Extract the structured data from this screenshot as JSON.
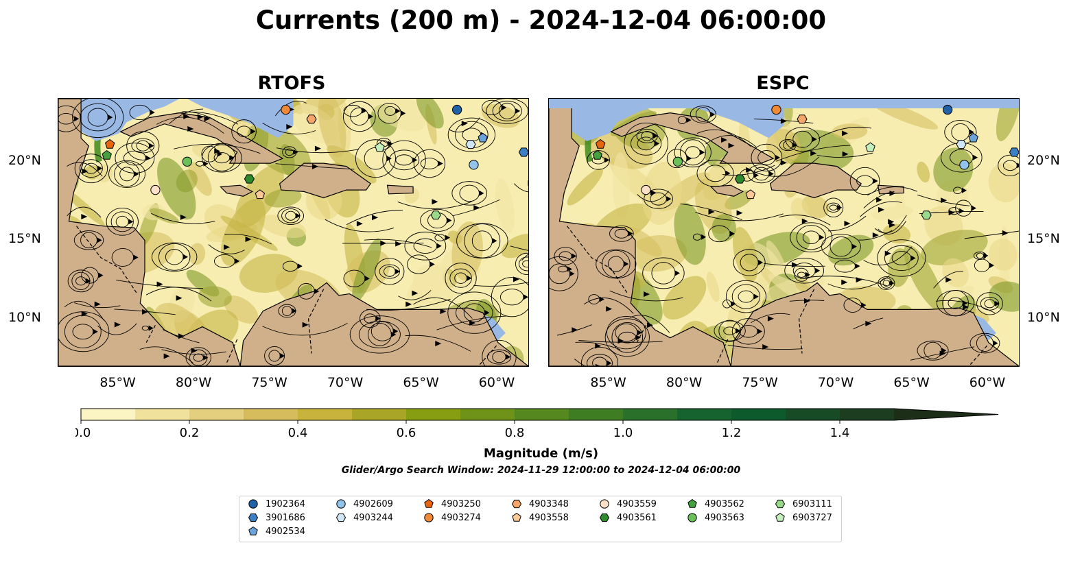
{
  "title": "Currents (200 m) - 2024-12-04 06:00:00",
  "panels": [
    {
      "title": "RTOFS"
    },
    {
      "title": "ESPC"
    }
  ],
  "axes": {
    "lon_ticks": [
      "85°W",
      "80°W",
      "75°W",
      "70°W",
      "65°W",
      "60°W"
    ],
    "lat_ticks": [
      "20°N",
      "15°N",
      "10°N"
    ],
    "lon_range": [
      -89,
      -58
    ],
    "lat_range": [
      7,
      24
    ]
  },
  "colorbar": {
    "label": "Magnitude (m/s)",
    "ticks": [
      "0.0",
      "0.2",
      "0.4",
      "0.6",
      "0.8",
      "1.0",
      "1.2",
      "1.4"
    ],
    "range": [
      0,
      1.5
    ],
    "colors": [
      "#fbf5c3",
      "#f0e29c",
      "#e3cf7d",
      "#d6bc5c",
      "#c8b43d",
      "#a9a526",
      "#879e12",
      "#6f9319",
      "#55881f",
      "#3f7d23",
      "#2a6f2a",
      "#16632f",
      "#0d5a2d",
      "#174b26",
      "#1c3d1f",
      "#1c2e18"
    ]
  },
  "search_window": "Glider/Argo Search Window: 2024-11-29 12:00:00 to 2024-12-04 06:00:00",
  "chart_data": {
    "type": "map",
    "variable": "Currents magnitude (m/s)",
    "depth": "200 m",
    "datetime": "2024-12-04 06:00:00",
    "floats": [
      {
        "id": "1902364",
        "lon": -62.7,
        "lat": 23.3,
        "marker": "circle",
        "color": "#1f62a8"
      },
      {
        "id": "3901686",
        "lon": -58.3,
        "lat": 20.6,
        "marker": "hexagon",
        "color": "#3b7fc4"
      },
      {
        "id": "4902534",
        "lon": -61.0,
        "lat": 21.5,
        "marker": "pentagon",
        "color": "#6aa4da"
      },
      {
        "id": "4902609",
        "lon": -61.6,
        "lat": 19.8,
        "marker": "circle",
        "color": "#93c3ea"
      },
      {
        "id": "4903244",
        "lon": -61.8,
        "lat": 21.1,
        "marker": "hexagon",
        "color": "#cfe6f7"
      },
      {
        "id": "4903250",
        "lon": -85.6,
        "lat": 21.1,
        "marker": "pentagon",
        "color": "#e8650f"
      },
      {
        "id": "4903274",
        "lon": -74.0,
        "lat": 23.3,
        "marker": "circle",
        "color": "#f08a36"
      },
      {
        "id": "4903348",
        "lon": -72.3,
        "lat": 22.7,
        "marker": "hexagon",
        "color": "#f5a66a"
      },
      {
        "id": "4903558",
        "lon": -75.7,
        "lat": 17.9,
        "marker": "pentagon",
        "color": "#fbc898"
      },
      {
        "id": "4903559",
        "lon": -82.6,
        "lat": 18.2,
        "marker": "circle",
        "color": "#fde0c8"
      },
      {
        "id": "4903561",
        "lon": -76.4,
        "lat": 18.9,
        "marker": "hexagon",
        "color": "#2f8a2d"
      },
      {
        "id": "4903562",
        "lon": -85.8,
        "lat": 20.4,
        "marker": "pentagon",
        "color": "#45a03f"
      },
      {
        "id": "4903563",
        "lon": -80.5,
        "lat": 20.0,
        "marker": "circle",
        "color": "#6cc05a"
      },
      {
        "id": "6903111",
        "lon": -64.1,
        "lat": 16.6,
        "marker": "hexagon",
        "color": "#98d98a"
      },
      {
        "id": "6903727",
        "lon": -67.8,
        "lat": 20.9,
        "marker": "pentagon",
        "color": "#c6efbe"
      }
    ]
  }
}
